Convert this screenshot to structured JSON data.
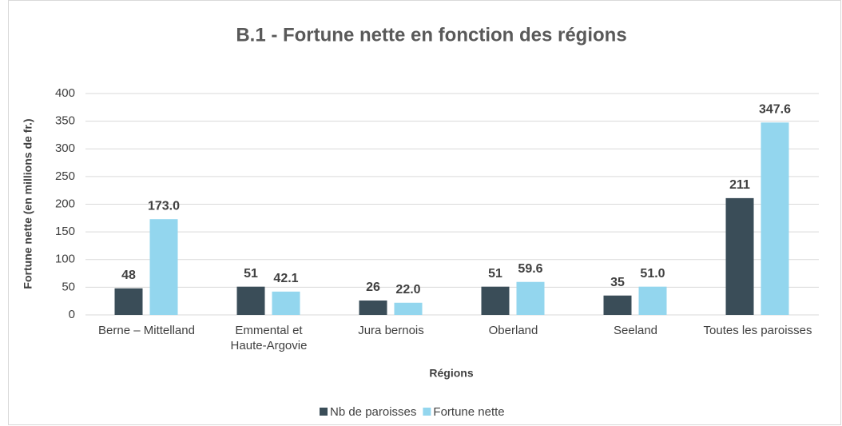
{
  "chart_data": {
    "type": "bar",
    "title": "B.1 - Fortune nette en fonction des régions",
    "x_label": "Régions",
    "y_label": "Fortune nette (en millions de fr.)",
    "categories": [
      "Berne – Mittelland",
      "Emmental et Haute-Argovie",
      "Jura bernois",
      "Oberland",
      "Seeland",
      "Toutes les paroisses"
    ],
    "series": [
      {
        "name": "Nb de paroisses",
        "color": "#3a4d58",
        "values": [
          48,
          51,
          26,
          51,
          35,
          211
        ]
      },
      {
        "name": "Fortune nette",
        "color": "#93d6ee",
        "values": [
          173.0,
          42.1,
          22.0,
          59.6,
          51.0,
          347.6
        ],
        "value_labels": [
          "173.0",
          "42.1",
          "22.0",
          "59.6",
          "51.0",
          "347.6"
        ]
      }
    ],
    "ylim": [
      0,
      400
    ],
    "yticks": [
      0,
      50,
      100,
      150,
      200,
      250,
      300,
      350,
      400
    ],
    "grid": true,
    "legend": "bottom"
  }
}
